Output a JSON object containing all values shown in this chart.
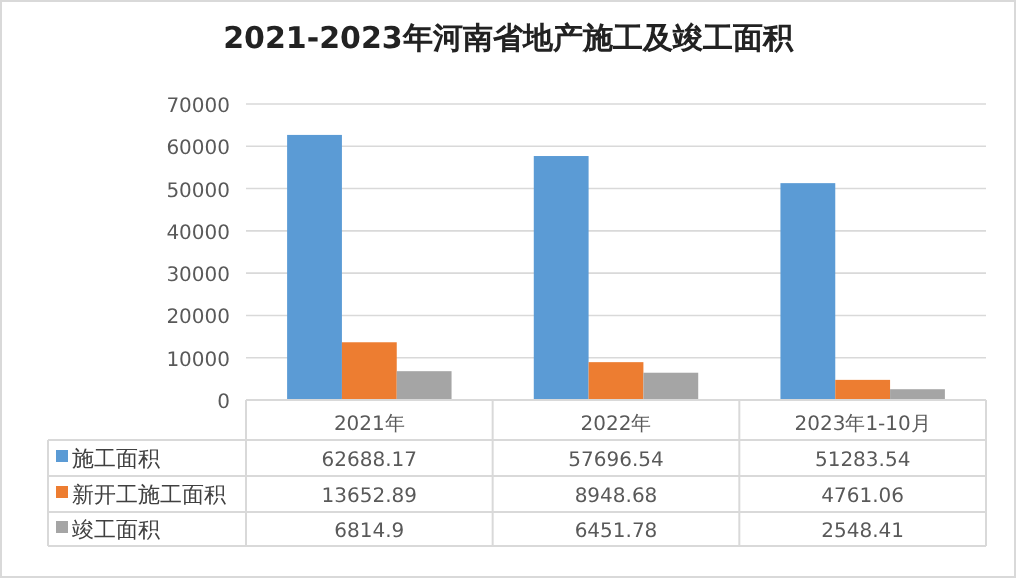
{
  "chart_data": {
    "type": "bar",
    "title": "2021-2023年河南省地产施工及竣工面积",
    "categories": [
      "2021年",
      "2022年",
      "2023年1-10月"
    ],
    "series": [
      {
        "name": "施工面积",
        "color": "#5b9bd5",
        "values": [
          62688.17,
          57696.54,
          51283.54
        ]
      },
      {
        "name": "新开工施工面积",
        "color": "#ed7d31",
        "values": [
          13652.89,
          8948.68,
          4761.06
        ]
      },
      {
        "name": "竣工面积",
        "color": "#a5a5a5",
        "values": [
          6814.9,
          6451.78,
          2548.41
        ]
      }
    ],
    "ylim": [
      0,
      70000
    ],
    "yticks": [
      0,
      10000,
      20000,
      30000,
      40000,
      50000,
      60000,
      70000
    ],
    "grid": "y",
    "data_labels": true,
    "legend": "bottom"
  }
}
